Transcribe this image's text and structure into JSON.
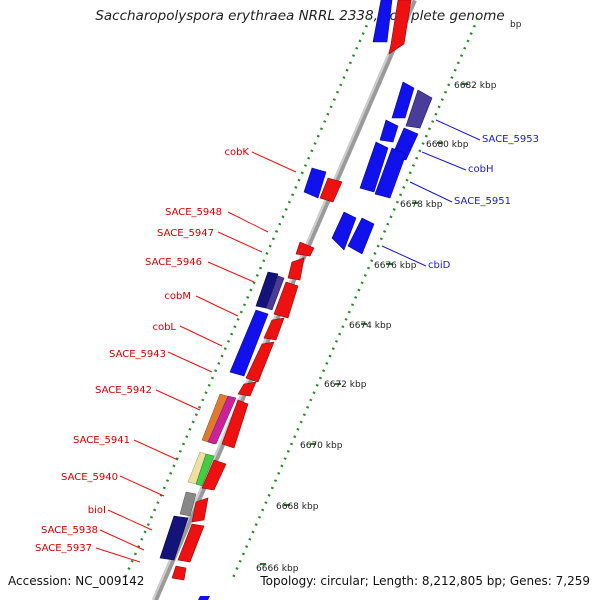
{
  "title": "Saccharopolyspora erythraea NRRL 2338, complete genome",
  "footer": {
    "accession": "Accession: NC_009142",
    "topology": "Topology: circular; Length: 8,212,805 bp; Genes: 7,259"
  },
  "ticks": [
    "6666 kbp",
    "6668 kbp",
    "6670 kbp",
    "6672 kbp",
    "6674 kbp",
    "6676 kbp",
    "6678 kbp",
    "6680 kbp",
    "6682 kbp",
    "bp"
  ],
  "left_labels": [
    "cobK",
    "SACE_5948",
    "SACE_5947",
    "SACE_5946",
    "cobM",
    "cobL",
    "SACE_5943",
    "SACE_5942",
    "SACE_5941",
    "SACE_5940",
    "bioI",
    "SACE_5938",
    "SACE_5937"
  ],
  "right_labels": [
    "SACE_5953",
    "cobH",
    "SACE_5951",
    "cbiD"
  ],
  "colors": {
    "forward": "#ee1111",
    "reverse": "#1111ee",
    "navy": "#13137a",
    "purple": "#4a3c99",
    "backbone": "#8a8a8a",
    "dots": "#2a8a2a",
    "left_text": "#d40000",
    "right_text": "#1a1acc"
  }
}
